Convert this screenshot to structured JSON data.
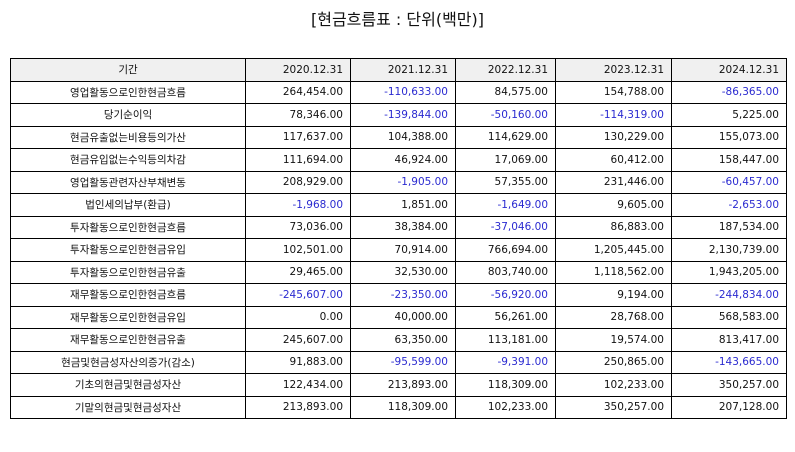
{
  "title": "[현금흐름표 : 단위(백만)]",
  "table": {
    "label_header": "기간",
    "columns": [
      "2020.12.31",
      "2021.12.31",
      "2022.12.31",
      "2023.12.31",
      "2024.12.31"
    ],
    "rows": [
      {
        "label": "영업활동으로인한현금흐름",
        "values": [
          "264,454.00",
          "-110,633.00",
          "84,575.00",
          "154,788.00",
          "-86,365.00"
        ]
      },
      {
        "label": "당기순이익",
        "values": [
          "78,346.00",
          "-139,844.00",
          "-50,160.00",
          "-114,319.00",
          "5,225.00"
        ]
      },
      {
        "label": "현금유출없는비용등의가산",
        "values": [
          "117,637.00",
          "104,388.00",
          "114,629.00",
          "130,229.00",
          "155,073.00"
        ]
      },
      {
        "label": "현금유입없는수익등의차감",
        "values": [
          "111,694.00",
          "46,924.00",
          "17,069.00",
          "60,412.00",
          "158,447.00"
        ]
      },
      {
        "label": "영업활동관련자산부채변동",
        "values": [
          "208,929.00",
          "-1,905.00",
          "57,355.00",
          "231,446.00",
          "-60,457.00"
        ]
      },
      {
        "label": "법인세의납부(환급)",
        "values": [
          "-1,968.00",
          "1,851.00",
          "-1,649.00",
          "9,605.00",
          "-2,653.00"
        ]
      },
      {
        "label": "투자활동으로인한현금흐름",
        "values": [
          "73,036.00",
          "38,384.00",
          "-37,046.00",
          "86,883.00",
          "187,534.00"
        ]
      },
      {
        "label": "투자활동으로인한현금유입",
        "values": [
          "102,501.00",
          "70,914.00",
          "766,694.00",
          "1,205,445.00",
          "2,130,739.00"
        ]
      },
      {
        "label": "투자활동으로인한현금유출",
        "values": [
          "29,465.00",
          "32,530.00",
          "803,740.00",
          "1,118,562.00",
          "1,943,205.00"
        ]
      },
      {
        "label": "재무활동으로인한현금흐름",
        "values": [
          "-245,607.00",
          "-23,350.00",
          "-56,920.00",
          "9,194.00",
          "-244,834.00"
        ]
      },
      {
        "label": "재무활동으로인한현금유입",
        "values": [
          "0.00",
          "40,000.00",
          "56,261.00",
          "28,768.00",
          "568,583.00"
        ]
      },
      {
        "label": "재무활동으로인한현금유출",
        "values": [
          "245,607.00",
          "63,350.00",
          "113,181.00",
          "19,574.00",
          "813,417.00"
        ]
      },
      {
        "label": "현금및현금성자산의증가(감소)",
        "values": [
          "91,883.00",
          "-95,599.00",
          "-9,391.00",
          "250,865.00",
          "-143,665.00"
        ]
      },
      {
        "label": "기초의현금및현금성자산",
        "values": [
          "122,434.00",
          "213,893.00",
          "118,309.00",
          "102,233.00",
          "350,257.00"
        ]
      },
      {
        "label": "기말의현금및현금성자산",
        "values": [
          "213,893.00",
          "118,309.00",
          "102,233.00",
          "350,257.00",
          "207,128.00"
        ]
      }
    ]
  },
  "colors": {
    "negative": "#2a2ad0",
    "header_bg": "#f0f0f0"
  }
}
